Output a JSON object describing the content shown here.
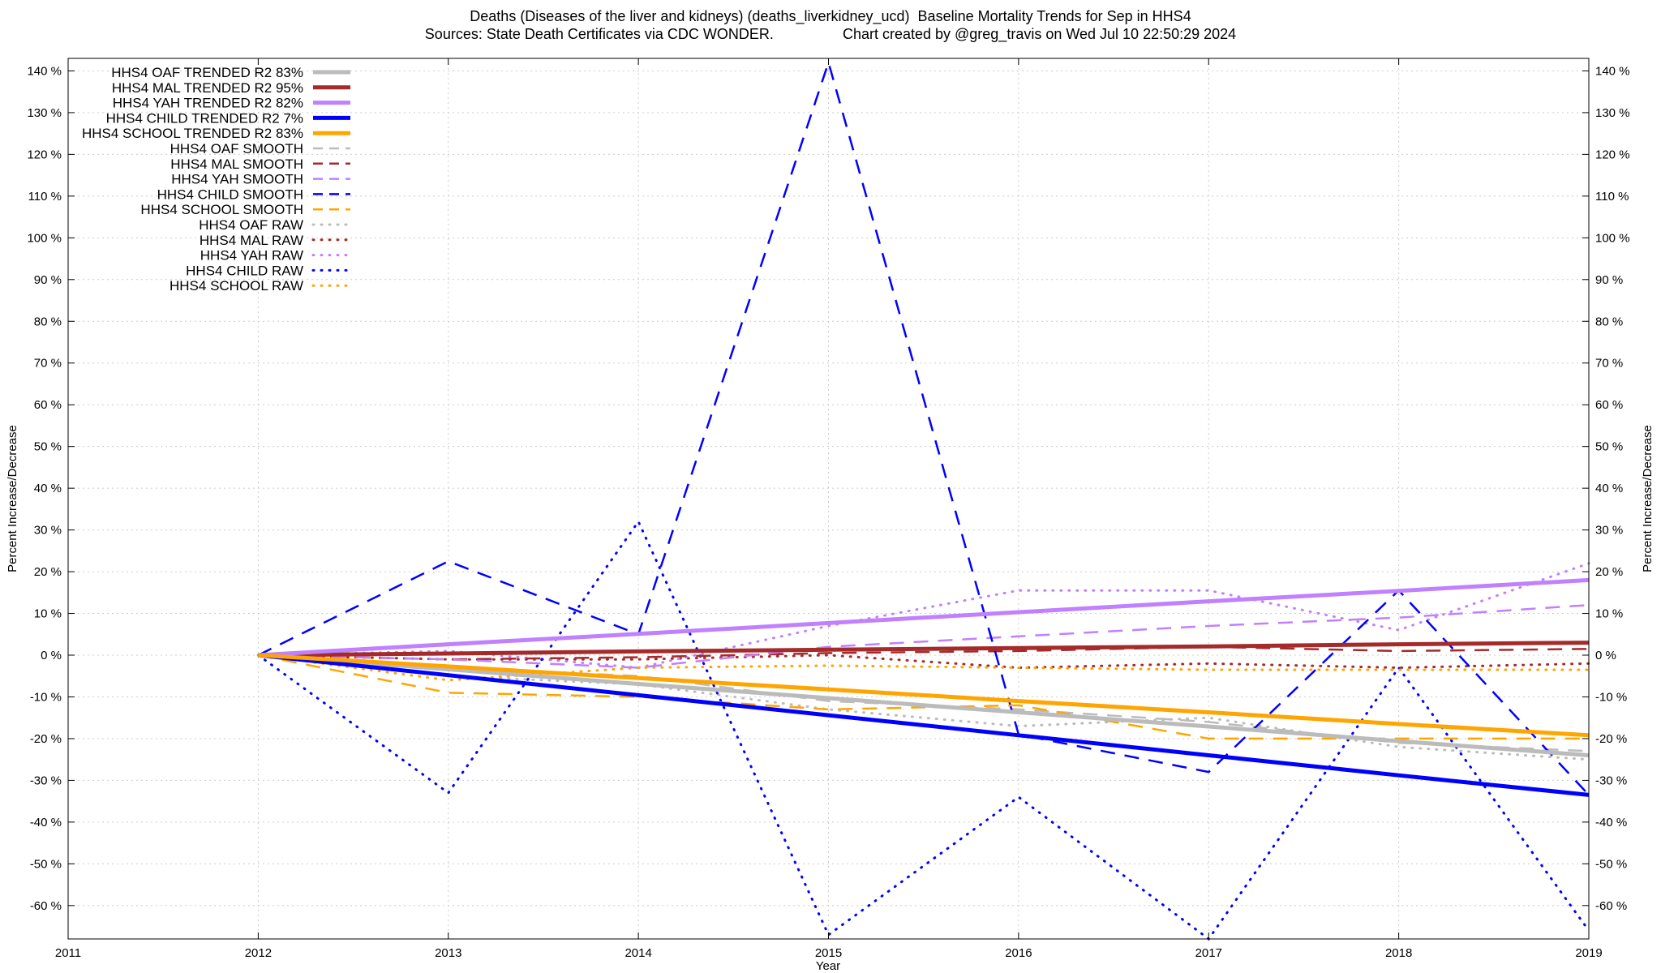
{
  "title": {
    "line1": "Deaths (Diseases of the liver and kidneys) (deaths_liverkidney_ucd)  Baseline Mortality Trends for Sep in HHS4",
    "line2": "Sources: State Death Certificates via CDC WONDER.                 Chart created by @greg_travis on Wed Jul 10 22:50:29 2024"
  },
  "colors": {
    "OAF": "#bbbbbb",
    "MAL": "#a52a2a",
    "YAH": "#c080ff",
    "CHILD": "#0000ff",
    "SCHOOL": "#ffa500",
    "grid": "#cccccc",
    "axis": "#000000"
  },
  "chart_data": {
    "type": "line",
    "title": "Deaths (Diseases of the liver and kidneys) (deaths_liverkidney_ucd)  Baseline Mortality Trends for Sep in HHS4",
    "subtitle": "Sources: State Death Certificates via CDC WONDER.                 Chart created by @greg_travis on Wed Jul 10 22:50:29 2024",
    "xlabel": "Year",
    "ylabel": "Percent Increase/Decrease",
    "y2label": "Percent Increase/Decrease",
    "xlim": [
      2011,
      2019
    ],
    "ylim": [
      -68,
      143
    ],
    "x_ticks": [
      2011,
      2012,
      2013,
      2014,
      2015,
      2016,
      2017,
      2018,
      2019
    ],
    "y_ticks": [
      140,
      130,
      120,
      110,
      100,
      90,
      80,
      70,
      60,
      50,
      40,
      30,
      20,
      10,
      0,
      -10,
      -20,
      -30,
      -40,
      -50,
      -60
    ],
    "y_tick_labels": [
      "140 %",
      "130 %",
      "120 %",
      "110 %",
      "100 %",
      "90 %",
      "80 %",
      "70 %",
      "60 %",
      "50 %",
      "40 %",
      "30 %",
      "20 %",
      "10 %",
      "0 %",
      "-10 %",
      "-20 %",
      "-30 %",
      "-40 %",
      "-50 %",
      "-60 %"
    ],
    "grid": true,
    "legend_position": "top-left",
    "x": [
      2012,
      2013,
      2014,
      2015,
      2016,
      2017,
      2018,
      2019
    ],
    "series": [
      {
        "name": "HHS4 OAF TRENDED R2  83%",
        "group": "OAF",
        "style": "solid",
        "values": [
          0,
          -3.4,
          -6.9,
          -10.3,
          -13.7,
          -17.1,
          -20.6,
          -24
        ]
      },
      {
        "name": "HHS4 MAL TRENDED R2  95%",
        "group": "MAL",
        "style": "solid",
        "values": [
          0,
          0.4,
          0.9,
          1.3,
          1.7,
          2.1,
          2.6,
          3
        ]
      },
      {
        "name": "HHS4 YAH TRENDED R2  82%",
        "group": "YAH",
        "style": "solid",
        "values": [
          0,
          2.6,
          5.1,
          7.7,
          10.3,
          12.9,
          15.4,
          18
        ]
      },
      {
        "name": "HHS4 CHILD TRENDED R2   7%",
        "group": "CHILD",
        "style": "solid",
        "values": [
          0,
          -4.8,
          -9.6,
          -14.4,
          -19.2,
          -24,
          -28.8,
          -33.5
        ]
      },
      {
        "name": "HHS4 SCHOOL TRENDED R2  83%",
        "group": "SCHOOL",
        "style": "solid",
        "values": [
          0,
          -2.7,
          -5.5,
          -8.2,
          -11,
          -13.7,
          -16.5,
          -19.2
        ]
      },
      {
        "name": "HHS4 OAF SMOOTH",
        "group": "OAF",
        "style": "dashed",
        "values": [
          0,
          -3,
          -5,
          -11,
          -13,
          -16,
          -21,
          -23
        ]
      },
      {
        "name": "HHS4 MAL SMOOTH",
        "group": "MAL",
        "style": "dashed",
        "values": [
          0,
          -1,
          -0.5,
          0.5,
          1,
          2,
          1,
          1.5
        ]
      },
      {
        "name": "HHS4 YAH SMOOTH",
        "group": "YAH",
        "style": "dashed",
        "values": [
          0,
          -1,
          -3,
          2,
          4.5,
          7,
          9,
          12
        ]
      },
      {
        "name": "HHS4 CHILD SMOOTH",
        "group": "CHILD",
        "style": "dashed",
        "values": [
          0,
          22.5,
          5,
          142,
          -19,
          -28,
          15.5,
          -33.5
        ]
      },
      {
        "name": "HHS4 SCHOOL SMOOTH",
        "group": "SCHOOL",
        "style": "dashed",
        "values": [
          0,
          -9,
          -10,
          -13,
          -12,
          -20,
          -20,
          -20
        ]
      },
      {
        "name": "HHS4 OAF RAW",
        "group": "OAF",
        "style": "dotted",
        "values": [
          0,
          -5,
          -7,
          -13,
          -17,
          -15,
          -22,
          -25
        ]
      },
      {
        "name": "HHS4 MAL RAW",
        "group": "MAL",
        "style": "dotted",
        "values": [
          0,
          -1,
          -1,
          0,
          -3,
          -2,
          -3,
          -2
        ]
      },
      {
        "name": "HHS4 YAH RAW",
        "group": "YAH",
        "style": "dotted",
        "values": [
          0,
          1,
          -3,
          7,
          15.5,
          15.5,
          6,
          22
        ]
      },
      {
        "name": "HHS4 CHILD RAW",
        "group": "CHILD",
        "style": "dotted",
        "values": [
          0,
          -33,
          32,
          -67,
          -34,
          -68,
          -3,
          -66
        ]
      },
      {
        "name": "HHS4 SCHOOL RAW",
        "group": "SCHOOL",
        "style": "dotted",
        "values": [
          0,
          -6,
          -3,
          -2.5,
          -3,
          -3.5,
          -3.5,
          -3.5
        ]
      }
    ]
  }
}
